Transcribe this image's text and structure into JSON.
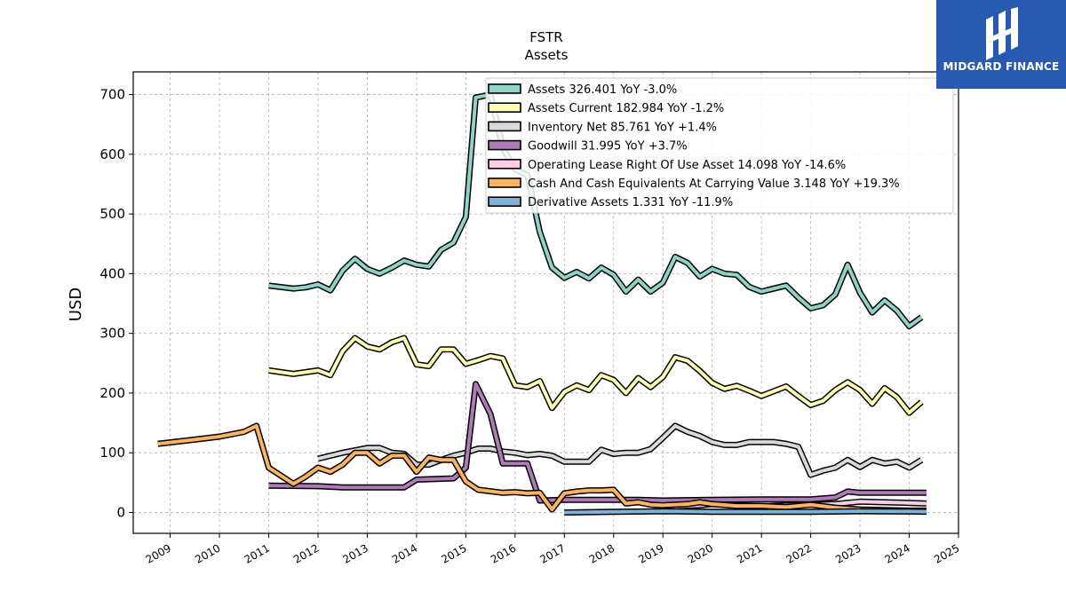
{
  "brand": {
    "name": "MIDGARD FINANCE",
    "bg_color": "#2a5ab0"
  },
  "chart_data": {
    "type": "line",
    "title": "FSTR",
    "subtitle": "Assets",
    "ylabel": "USD",
    "xlabel": "",
    "ylim": [
      -35,
      738
    ],
    "xlim": [
      2008.25,
      2025.0
    ],
    "yticks": [
      0,
      100,
      200,
      300,
      400,
      500,
      600,
      700
    ],
    "xticks": [
      "2009",
      "2010",
      "2011",
      "2012",
      "2013",
      "2014",
      "2015",
      "2016",
      "2017",
      "2018",
      "2019",
      "2020",
      "2021",
      "2022",
      "2023",
      "2024",
      "2025"
    ],
    "grid": true,
    "legend_position": "top-right",
    "series": [
      {
        "name": "Assets",
        "legend": "Assets  326.401 YoY -3.0%",
        "color": "#8dd3c7",
        "points": [
          [
            2011.0,
            380
          ],
          [
            2011.5,
            375
          ],
          [
            2011.75,
            377
          ],
          [
            2012.0,
            382
          ],
          [
            2012.25,
            372
          ],
          [
            2012.5,
            405
          ],
          [
            2012.75,
            425
          ],
          [
            2013.0,
            408
          ],
          [
            2013.25,
            400
          ],
          [
            2013.5,
            410
          ],
          [
            2013.75,
            422
          ],
          [
            2014.0,
            415
          ],
          [
            2014.25,
            412
          ],
          [
            2014.5,
            440
          ],
          [
            2014.75,
            452
          ],
          [
            2015.0,
            495
          ],
          [
            2015.2,
            695
          ],
          [
            2015.5,
            700
          ],
          [
            2015.75,
            610
          ],
          [
            2016.0,
            575
          ],
          [
            2016.25,
            565
          ],
          [
            2016.5,
            470
          ],
          [
            2016.75,
            410
          ],
          [
            2017.0,
            393
          ],
          [
            2017.25,
            403
          ],
          [
            2017.5,
            392
          ],
          [
            2017.75,
            410
          ],
          [
            2018.0,
            398
          ],
          [
            2018.25,
            370
          ],
          [
            2018.5,
            390
          ],
          [
            2018.75,
            370
          ],
          [
            2019.0,
            385
          ],
          [
            2019.25,
            428
          ],
          [
            2019.5,
            418
          ],
          [
            2019.75,
            395
          ],
          [
            2020.0,
            408
          ],
          [
            2020.25,
            400
          ],
          [
            2020.5,
            398
          ],
          [
            2020.75,
            378
          ],
          [
            2021.0,
            370
          ],
          [
            2021.25,
            375
          ],
          [
            2021.5,
            380
          ],
          [
            2021.75,
            360
          ],
          [
            2022.0,
            342
          ],
          [
            2022.25,
            347
          ],
          [
            2022.5,
            365
          ],
          [
            2022.75,
            415
          ],
          [
            2023.0,
            368
          ],
          [
            2023.25,
            335
          ],
          [
            2023.5,
            355
          ],
          [
            2023.75,
            338
          ],
          [
            2024.0,
            312
          ],
          [
            2024.25,
            327
          ]
        ]
      },
      {
        "name": "Assets Current",
        "legend": "Assets Current  182.984 YoY -1.2%",
        "color": "#ffffb3",
        "points": [
          [
            2011.0,
            238
          ],
          [
            2011.5,
            232
          ],
          [
            2012.0,
            238
          ],
          [
            2012.25,
            230
          ],
          [
            2012.5,
            270
          ],
          [
            2012.75,
            292
          ],
          [
            2013.0,
            278
          ],
          [
            2013.25,
            273
          ],
          [
            2013.5,
            285
          ],
          [
            2013.75,
            292
          ],
          [
            2014.0,
            248
          ],
          [
            2014.25,
            245
          ],
          [
            2014.5,
            273
          ],
          [
            2014.75,
            273
          ],
          [
            2015.0,
            249
          ],
          [
            2015.25,
            255
          ],
          [
            2015.5,
            262
          ],
          [
            2015.75,
            258
          ],
          [
            2016.0,
            213
          ],
          [
            2016.25,
            210
          ],
          [
            2016.5,
            220
          ],
          [
            2016.75,
            175
          ],
          [
            2017.0,
            202
          ],
          [
            2017.25,
            213
          ],
          [
            2017.5,
            205
          ],
          [
            2017.75,
            230
          ],
          [
            2018.0,
            222
          ],
          [
            2018.25,
            200
          ],
          [
            2018.5,
            225
          ],
          [
            2018.75,
            210
          ],
          [
            2019.0,
            227
          ],
          [
            2019.25,
            260
          ],
          [
            2019.5,
            254
          ],
          [
            2019.75,
            237
          ],
          [
            2020.0,
            217
          ],
          [
            2020.25,
            207
          ],
          [
            2020.5,
            212
          ],
          [
            2020.75,
            204
          ],
          [
            2021.0,
            195
          ],
          [
            2021.25,
            203
          ],
          [
            2021.5,
            211
          ],
          [
            2021.75,
            195
          ],
          [
            2022.0,
            180
          ],
          [
            2022.25,
            187
          ],
          [
            2022.5,
            205
          ],
          [
            2022.75,
            218
          ],
          [
            2023.0,
            205
          ],
          [
            2023.25,
            182
          ],
          [
            2023.5,
            208
          ],
          [
            2023.75,
            193
          ],
          [
            2024.0,
            167
          ],
          [
            2024.25,
            185
          ]
        ]
      },
      {
        "name": "Inventory Net",
        "legend": "Inventory Net  85.761 YoY +1.4%",
        "color": "#d9d9d9",
        "points": [
          [
            2012.0,
            90
          ],
          [
            2012.5,
            100
          ],
          [
            2013.0,
            108
          ],
          [
            2013.25,
            108
          ],
          [
            2013.5,
            100
          ],
          [
            2013.75,
            98
          ],
          [
            2014.0,
            80
          ],
          [
            2014.25,
            80
          ],
          [
            2014.5,
            88
          ],
          [
            2014.75,
            95
          ],
          [
            2015.0,
            100
          ],
          [
            2015.25,
            107
          ],
          [
            2015.5,
            107
          ],
          [
            2015.75,
            102
          ],
          [
            2016.0,
            100
          ],
          [
            2016.25,
            96
          ],
          [
            2016.5,
            98
          ],
          [
            2016.75,
            95
          ],
          [
            2017.0,
            85
          ],
          [
            2017.5,
            85
          ],
          [
            2017.75,
            105
          ],
          [
            2018.0,
            98
          ],
          [
            2018.25,
            100
          ],
          [
            2018.5,
            100
          ],
          [
            2018.75,
            106
          ],
          [
            2019.0,
            125
          ],
          [
            2019.25,
            145
          ],
          [
            2019.5,
            135
          ],
          [
            2019.75,
            128
          ],
          [
            2020.0,
            118
          ],
          [
            2020.25,
            113
          ],
          [
            2020.5,
            113
          ],
          [
            2020.75,
            118
          ],
          [
            2021.0,
            118
          ],
          [
            2021.25,
            118
          ],
          [
            2021.5,
            115
          ],
          [
            2021.75,
            110
          ],
          [
            2022.0,
            63
          ],
          [
            2022.25,
            70
          ],
          [
            2022.5,
            75
          ],
          [
            2022.75,
            88
          ],
          [
            2023.0,
            76
          ],
          [
            2023.25,
            88
          ],
          [
            2023.5,
            82
          ],
          [
            2023.75,
            85
          ],
          [
            2024.0,
            75
          ],
          [
            2024.25,
            88
          ]
        ]
      },
      {
        "name": "Goodwill",
        "legend": "Goodwill  31.995 YoY +3.7%",
        "color": "#b07ab8",
        "points": [
          [
            2011.0,
            45
          ],
          [
            2012.0,
            44
          ],
          [
            2012.5,
            42
          ],
          [
            2013.0,
            42
          ],
          [
            2013.75,
            42
          ],
          [
            2014.0,
            55
          ],
          [
            2014.75,
            57
          ],
          [
            2015.0,
            75
          ],
          [
            2015.2,
            215
          ],
          [
            2015.5,
            165
          ],
          [
            2015.75,
            82
          ],
          [
            2016.0,
            82
          ],
          [
            2016.25,
            82
          ],
          [
            2016.5,
            20
          ],
          [
            2017.0,
            21
          ],
          [
            2017.75,
            21
          ],
          [
            2018.0,
            21
          ],
          [
            2018.5,
            21
          ],
          [
            2019.0,
            20
          ],
          [
            2020.0,
            21
          ],
          [
            2021.0,
            22
          ],
          [
            2022.0,
            22
          ],
          [
            2022.5,
            25
          ],
          [
            2022.75,
            35
          ],
          [
            2023.0,
            33
          ],
          [
            2023.5,
            33
          ],
          [
            2024.0,
            33
          ],
          [
            2024.35,
            33
          ]
        ]
      },
      {
        "name": "Operating Lease Right Of Use Asset",
        "legend": "Operating Lease Right Of Use Asset  14.098 YoY -14.6%",
        "color": "#fccde5",
        "points": [
          [
            2019.0,
            10
          ],
          [
            2019.25,
            10
          ],
          [
            2019.75,
            12
          ],
          [
            2020.0,
            14
          ],
          [
            2020.5,
            12
          ],
          [
            2021.0,
            10
          ],
          [
            2021.5,
            12
          ],
          [
            2022.0,
            13
          ],
          [
            2022.5,
            14
          ],
          [
            2023.0,
            18
          ],
          [
            2023.5,
            17
          ],
          [
            2024.0,
            16
          ],
          [
            2024.35,
            15
          ]
        ]
      },
      {
        "name": "Cash And Cash Equivalents At Carrying Value",
        "legend": "Cash And Cash Equivalents At Carrying Value  3.148 YoY +19.3%",
        "color": "#fdb462",
        "points": [
          [
            2008.75,
            115
          ],
          [
            2009.5,
            122
          ],
          [
            2010.0,
            127
          ],
          [
            2010.5,
            135
          ],
          [
            2010.75,
            145
          ],
          [
            2011.0,
            75
          ],
          [
            2011.5,
            48
          ],
          [
            2011.75,
            60
          ],
          [
            2012.0,
            75
          ],
          [
            2012.25,
            68
          ],
          [
            2012.5,
            80
          ],
          [
            2012.75,
            100
          ],
          [
            2013.0,
            100
          ],
          [
            2013.25,
            82
          ],
          [
            2013.5,
            95
          ],
          [
            2013.75,
            95
          ],
          [
            2014.0,
            68
          ],
          [
            2014.25,
            92
          ],
          [
            2014.5,
            88
          ],
          [
            2014.75,
            88
          ],
          [
            2015.0,
            52
          ],
          [
            2015.25,
            38
          ],
          [
            2015.75,
            33
          ],
          [
            2016.0,
            34
          ],
          [
            2016.25,
            32
          ],
          [
            2016.5,
            33
          ],
          [
            2016.75,
            5
          ],
          [
            2017.0,
            32
          ],
          [
            2017.25,
            35
          ],
          [
            2017.5,
            37
          ],
          [
            2017.75,
            37
          ],
          [
            2018.0,
            38
          ],
          [
            2018.25,
            15
          ],
          [
            2018.5,
            17
          ],
          [
            2018.75,
            13
          ],
          [
            2019.0,
            12
          ],
          [
            2019.5,
            14
          ],
          [
            2019.75,
            17
          ],
          [
            2020.0,
            14
          ],
          [
            2020.5,
            11
          ],
          [
            2021.0,
            11
          ],
          [
            2021.5,
            9
          ],
          [
            2022.0,
            13
          ],
          [
            2022.5,
            8
          ],
          [
            2023.0,
            5
          ],
          [
            2023.5,
            4
          ],
          [
            2024.0,
            3
          ],
          [
            2024.35,
            3
          ]
        ]
      },
      {
        "name": "Derivative Assets",
        "legend": "Derivative Assets  1.331 YoY -11.9%",
        "color": "#80b1d3",
        "points": [
          [
            2017.0,
            0
          ],
          [
            2018.0,
            1
          ],
          [
            2019.0,
            2
          ],
          [
            2020.0,
            1
          ],
          [
            2021.0,
            1
          ],
          [
            2022.0,
            1
          ],
          [
            2023.0,
            2
          ],
          [
            2024.0,
            1.5
          ],
          [
            2024.35,
            1.3
          ]
        ]
      }
    ]
  }
}
